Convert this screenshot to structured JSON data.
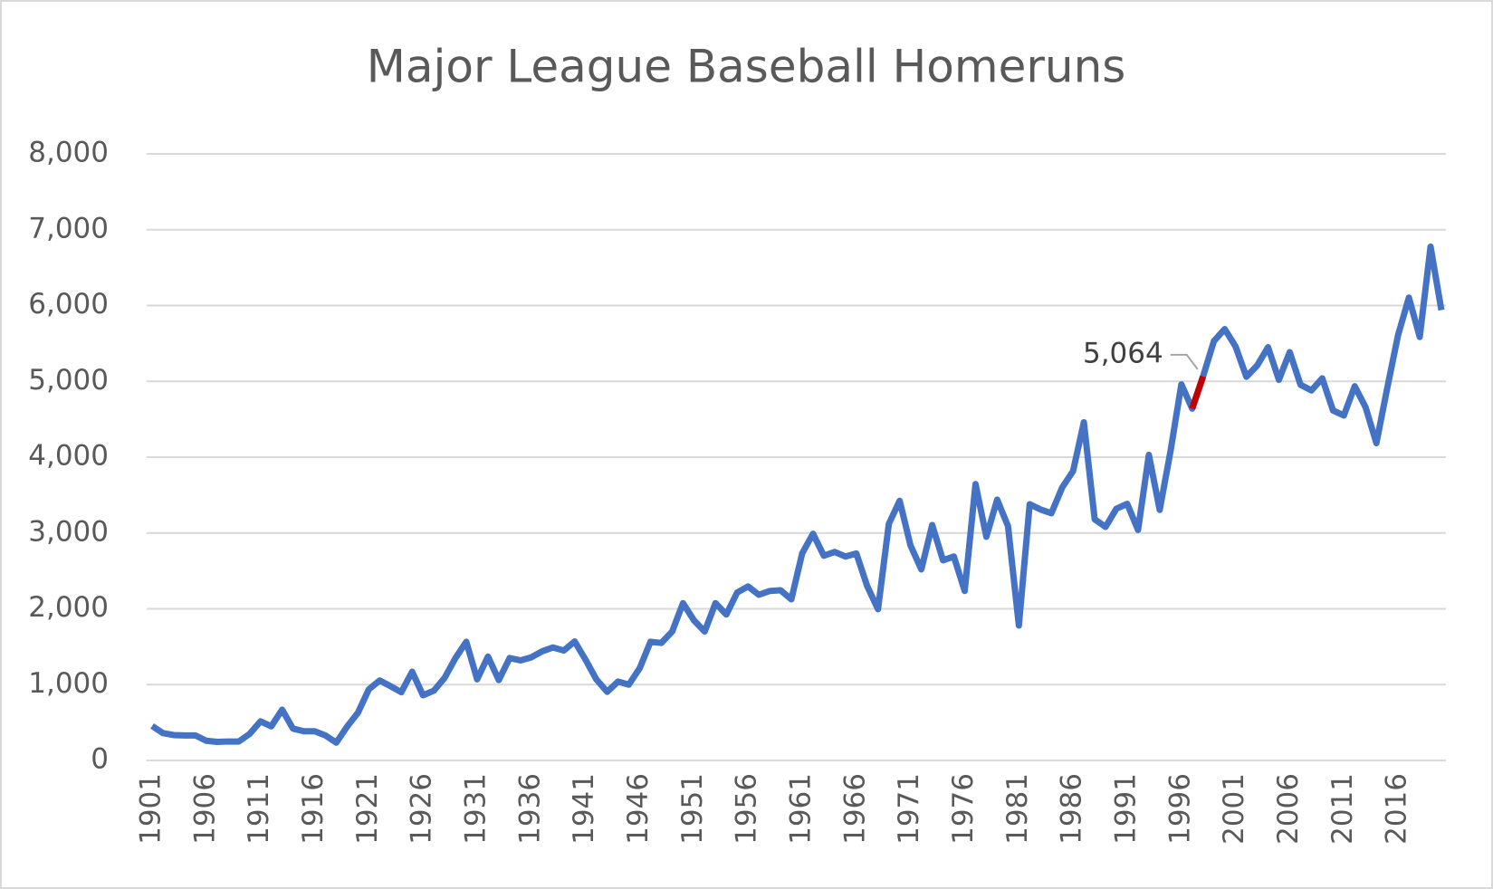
{
  "chart_data": {
    "type": "line",
    "title": "Major League Baseball Homeruns",
    "categories": [
      1901,
      null,
      null,
      null,
      null,
      1906,
      null,
      null,
      null,
      null,
      1911,
      null,
      null,
      null,
      null,
      1916,
      null,
      null,
      null,
      null,
      1921,
      null,
      null,
      null,
      null,
      1926,
      null,
      null,
      null,
      null,
      1931,
      null,
      null,
      null,
      null,
      1936,
      null,
      null,
      null,
      null,
      1941,
      null,
      null,
      null,
      null,
      1946,
      null,
      null,
      null,
      null,
      1951,
      null,
      null,
      null,
      null,
      1956,
      null,
      null,
      null,
      null,
      1961,
      null,
      null,
      null,
      null,
      1966,
      null,
      null,
      null,
      null,
      1971,
      null,
      null,
      null,
      null,
      1976,
      null,
      null,
      null,
      null,
      1981,
      null,
      null,
      null,
      null,
      1986,
      null,
      null,
      null,
      null,
      1991,
      null,
      null,
      null,
      null,
      1996,
      null,
      null,
      null,
      null,
      2001,
      null,
      null,
      null,
      null,
      2006,
      null,
      null,
      null,
      null,
      2011,
      null,
      null,
      null,
      null,
      2016,
      null,
      null,
      null,
      null
    ],
    "series": [
      {
        "color": "#4472c4",
        "values": [
          455,
          360,
          335,
          330,
          330,
          260,
          245,
          250,
          250,
          350,
          515,
          450,
          670,
          420,
          385,
          385,
          330,
          235,
          447,
          630,
          937,
          1055,
          980,
          900,
          1170,
          860,
          920,
          1090,
          1350,
          1565,
          1070,
          1370,
          1060,
          1350,
          1320,
          1360,
          1440,
          1490,
          1450,
          1570,
          1330,
          1070,
          905,
          1040,
          1000,
          1215,
          1565,
          1550,
          1700,
          2075,
          1850,
          1700,
          2075,
          1925,
          2215,
          2295,
          2185,
          2235,
          2245,
          2125,
          2730,
          2990,
          2700,
          2750,
          2690,
          2730,
          2300,
          1995,
          3120,
          3425,
          2835,
          2520,
          3105,
          2640,
          2690,
          2235,
          3645,
          2950,
          3440,
          3090,
          1780,
          3380,
          3310,
          3260,
          3600,
          3815,
          4460,
          3180,
          3080,
          3320,
          3385,
          3040,
          4030,
          3305,
          4080,
          4960,
          4640,
          5064,
          5530,
          5690,
          5460,
          5060,
          5210,
          5450,
          5020,
          5385,
          4955,
          4880,
          5040,
          4615,
          4550,
          4935,
          4660,
          4185,
          4910,
          5610,
          6105,
          5585,
          6776,
          5940
        ],
        "value_labels": [
          null,
          null,
          null,
          null,
          null,
          null,
          null,
          null,
          null,
          null,
          null,
          null,
          null,
          null,
          null,
          null,
          null,
          null,
          null,
          null,
          null,
          null,
          null,
          null,
          null,
          null,
          null,
          null,
          null,
          null,
          null,
          null,
          null,
          null,
          null,
          null,
          null,
          null,
          null,
          null,
          null,
          null,
          null,
          null,
          null,
          null,
          null,
          null,
          null,
          null,
          null,
          null,
          null,
          null,
          null,
          null,
          null,
          null,
          null,
          null,
          null,
          null,
          null,
          null,
          null,
          null,
          null,
          null,
          null,
          null,
          null,
          null,
          null,
          null,
          null,
          null,
          null,
          null,
          null,
          null,
          null,
          null,
          null,
          null,
          null,
          null,
          null,
          null,
          null,
          null,
          null,
          null,
          null,
          null,
          null,
          null,
          null,
          "5,064",
          null,
          null,
          null,
          null,
          null,
          null,
          null,
          null,
          null,
          null,
          null,
          null,
          null,
          null,
          null,
          null,
          null,
          null,
          null,
          null,
          null,
          null
        ],
        "highlight_color": "#c00000"
      }
    ],
    "ylim": [
      0,
      8000
    ],
    "yticks": [
      0,
      {
        "value": 1000,
        "label": "1,000"
      },
      {
        "value": 2000,
        "label": "2,000"
      },
      {
        "value": 3000,
        "label": "3,000"
      },
      {
        "value": 4000,
        "label": "4,000"
      },
      {
        "value": 5000,
        "label": "5,000"
      },
      {
        "value": 6000,
        "label": "6,000"
      },
      {
        "value": 7000,
        "label": "7,000"
      },
      {
        "value": 8000,
        "label": "8,000"
      }
    ],
    "grid": true
  }
}
